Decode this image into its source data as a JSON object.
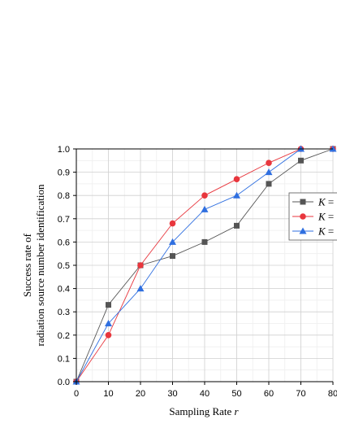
{
  "chart_data": {
    "type": "line",
    "xlabel": "Sampling Rate",
    "xlabel_var": "r",
    "ylabel_line1": "Success rate of",
    "ylabel_line2": "radiation source number identification",
    "xlim": [
      0,
      80
    ],
    "ylim": [
      0,
      1.0
    ],
    "xticks": [
      0,
      10,
      20,
      30,
      40,
      50,
      60,
      70,
      80
    ],
    "yticks": [
      0.0,
      0.1,
      0.2,
      0.3,
      0.4,
      0.5,
      0.6,
      0.7,
      0.8,
      0.9,
      1.0
    ],
    "ytick_labels": [
      "0.0",
      "0.1",
      "0.2",
      "0.3",
      "0.4",
      "0.5",
      "0.6",
      "0.7",
      "0.8",
      "0.9",
      "1.0"
    ],
    "grid": true,
    "legend_position": "right",
    "series": [
      {
        "name": "K = ",
        "marker": "square",
        "color": "#555555",
        "x": [
          0,
          10,
          20,
          30,
          40,
          50,
          60,
          70,
          80
        ],
        "y": [
          0.0,
          0.33,
          0.5,
          0.54,
          0.6,
          0.67,
          0.85,
          0.95,
          1.0
        ]
      },
      {
        "name": "K = ",
        "marker": "circle",
        "color": "#e8363d",
        "x": [
          0,
          10,
          20,
          30,
          40,
          50,
          60,
          70,
          80
        ],
        "y": [
          0.0,
          0.2,
          0.5,
          0.68,
          0.8,
          0.87,
          0.94,
          1.0,
          1.0
        ]
      },
      {
        "name": "K = ",
        "marker": "triangle",
        "color": "#2f6fe0",
        "x": [
          0,
          10,
          20,
          30,
          40,
          50,
          60,
          70,
          80
        ],
        "y": [
          0.0,
          0.25,
          0.4,
          0.6,
          0.74,
          0.8,
          0.9,
          1.0,
          1.0
        ]
      }
    ]
  }
}
